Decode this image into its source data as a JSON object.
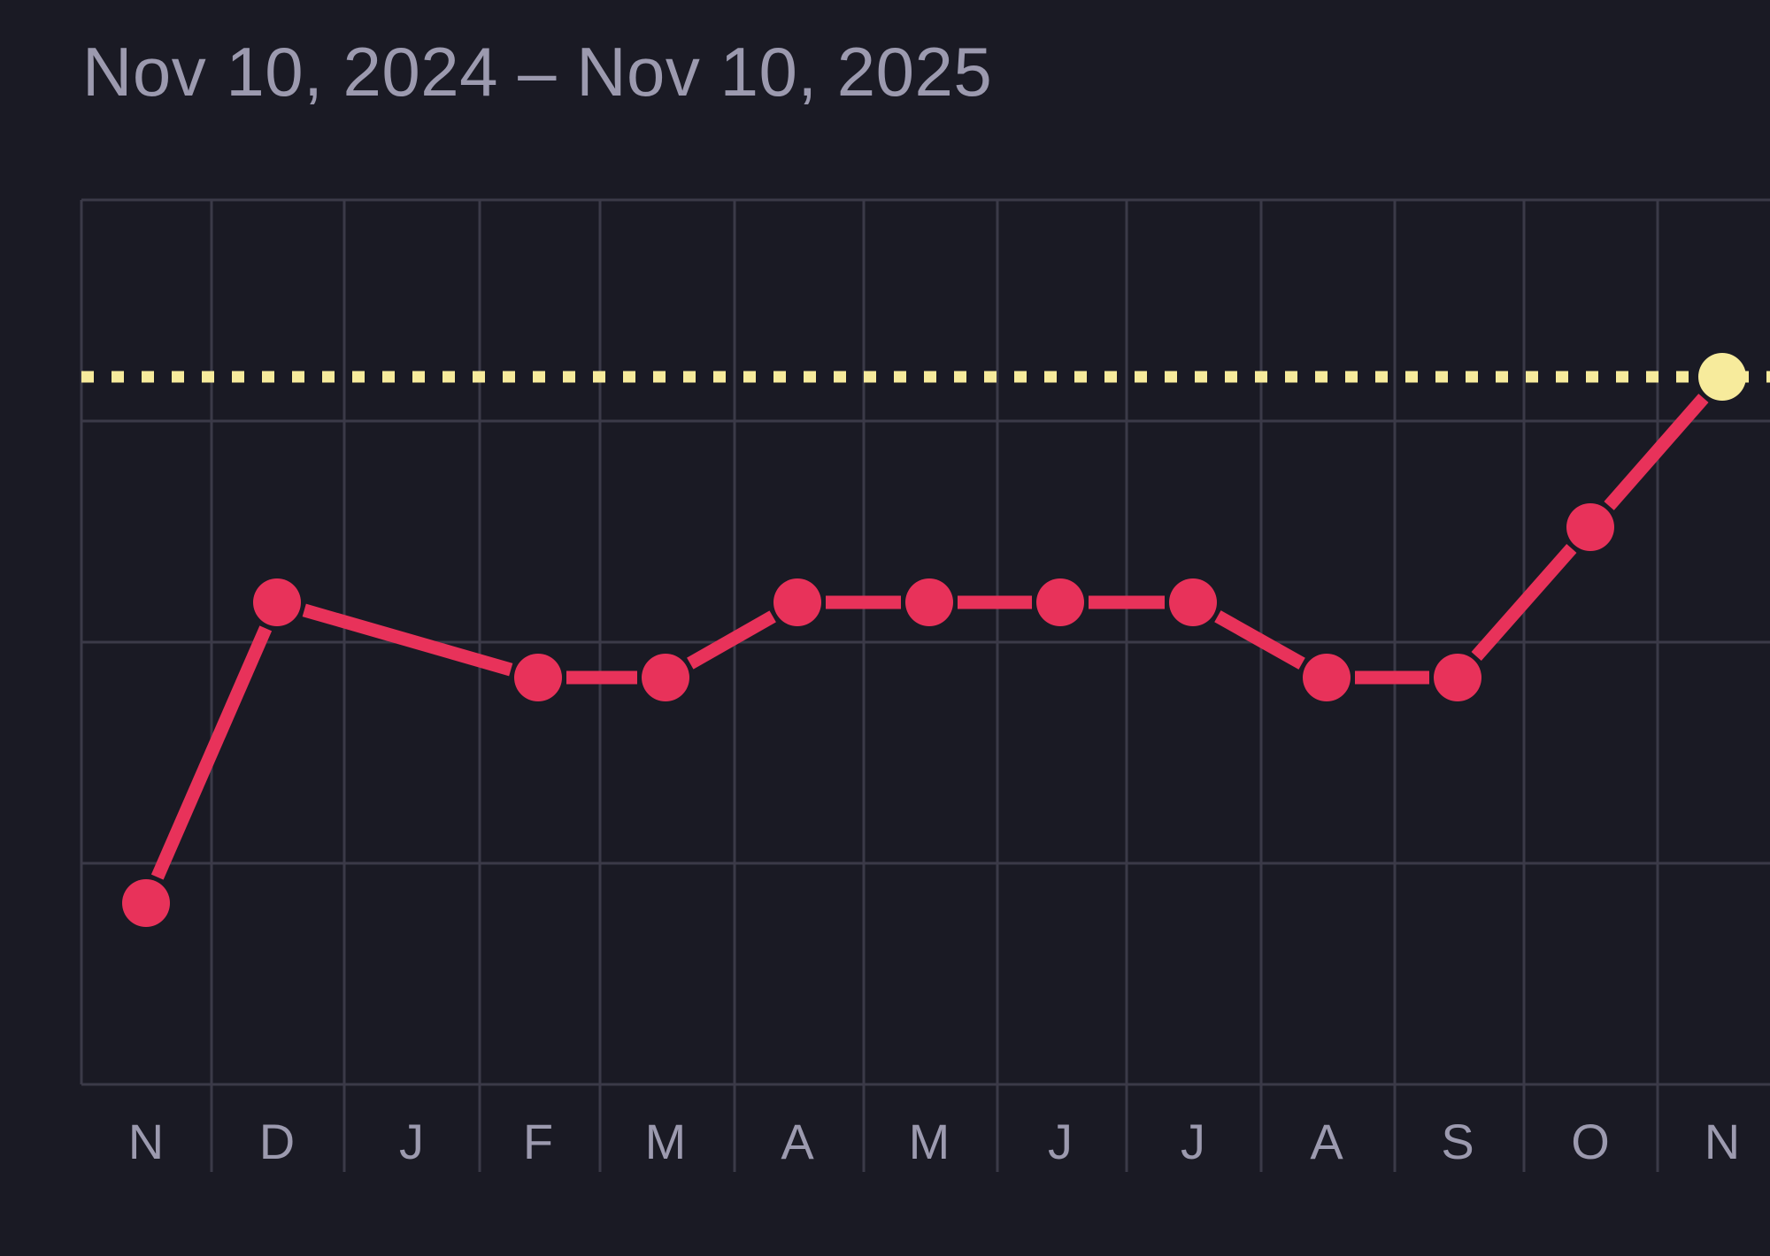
{
  "header": {
    "date_range": "Nov 10, 2024 – Nov 10, 2025"
  },
  "colors": {
    "background": "#1a1a24",
    "grid": "#3b3a48",
    "series": "#e8325a",
    "target": "#f7eb9c",
    "label": "#9c9aaf"
  },
  "chart_data": {
    "type": "line",
    "title": "",
    "xlabel": "",
    "ylabel": "",
    "grid": true,
    "ylim": [
      0,
      4
    ],
    "categories": [
      "N",
      "D",
      "J",
      "F",
      "M",
      "A",
      "M",
      "J",
      "J",
      "A",
      "S",
      "O",
      "N"
    ],
    "series": [
      {
        "values": [
          0.82,
          2.18,
          null,
          1.84,
          1.84,
          2.18,
          2.18,
          2.18,
          2.18,
          1.84,
          1.84,
          2.52,
          3.2
        ]
      }
    ],
    "reference_line": {
      "value": 3.2,
      "style": "dotted"
    }
  }
}
